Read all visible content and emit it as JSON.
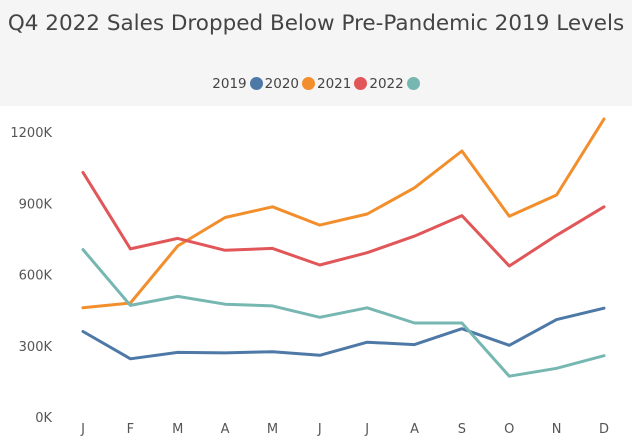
{
  "chart_data": {
    "type": "line",
    "title": "Q4 2022 Sales Dropped Below Pre-Pandemic 2019 Levels",
    "xlabel": "",
    "ylabel": "",
    "categories": [
      "J",
      "F",
      "M",
      "A",
      "M",
      "J",
      "J",
      "A",
      "S",
      "O",
      "N",
      "D"
    ],
    "ylim": [
      0,
      1300000
    ],
    "yticks": [
      0,
      300000,
      600000,
      900000,
      1200000
    ],
    "ytick_labels": [
      "0K",
      "300K",
      "600K",
      "900K",
      "1200K"
    ],
    "grid": false,
    "legend_position": "top-center",
    "series": [
      {
        "name": "2019",
        "color": "#4e79a7",
        "values": [
          360000,
          245000,
          272000,
          270000,
          275000,
          260000,
          315000,
          305000,
          372000,
          302000,
          410000,
          458000
        ]
      },
      {
        "name": "2020",
        "color": "#f28e2b",
        "values": [
          460000,
          480000,
          720000,
          840000,
          885000,
          808000,
          855000,
          965000,
          1120000,
          845000,
          935000,
          1255000
        ]
      },
      {
        "name": "2021",
        "color": "#e15759",
        "values": [
          1030000,
          708000,
          752000,
          702000,
          710000,
          640000,
          692000,
          762000,
          848000,
          636000,
          765000,
          885000
        ]
      },
      {
        "name": "2022",
        "color": "#76b7b2",
        "values": [
          705000,
          470000,
          508000,
          475000,
          468000,
          420000,
          460000,
          396000,
          396000,
          172000,
          205000,
          258000
        ]
      }
    ]
  }
}
